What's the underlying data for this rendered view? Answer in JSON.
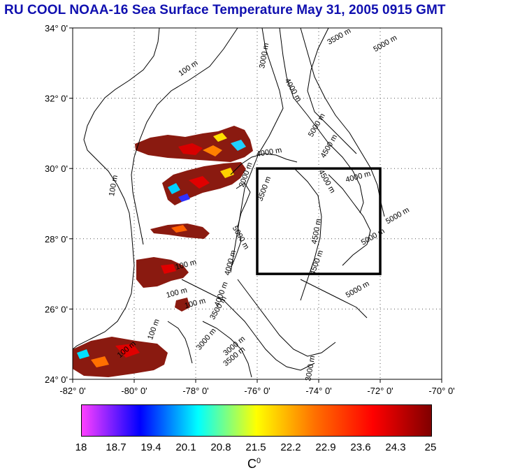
{
  "title": "RU COOL  NOAA-16 Sea Surface Temperature May 31, 2005 0915 GMT",
  "map": {
    "lon_range": [
      -82,
      -70
    ],
    "lat_range": [
      24,
      34
    ],
    "lon_ticks": [
      "-82° 0'",
      "-80° 0'",
      "-78° 0'",
      "-76° 0'",
      "-74° 0'",
      "-72° 0'",
      "-70° 0'"
    ],
    "lat_ticks": [
      "34° 0'",
      "32° 0'",
      "30° 0'",
      "28° 0'",
      "26° 0'",
      "24° 0'"
    ],
    "grid": "dotted",
    "study_box": {
      "lon": [
        -76,
        -72
      ],
      "lat": [
        27,
        30
      ]
    },
    "contour_labels": [
      {
        "text": "100 m",
        "lon": -78.2,
        "lat": 32.8,
        "angle": -35
      },
      {
        "text": "100 m",
        "lon": -80.6,
        "lat": 29.5,
        "angle": -80
      },
      {
        "text": "3000 m",
        "lon": -75.7,
        "lat": 33.2,
        "angle": -80
      },
      {
        "text": "3500 m",
        "lon": -73.3,
        "lat": 33.7,
        "angle": -30
      },
      {
        "text": "5000 m",
        "lon": -71.8,
        "lat": 33.5,
        "angle": -30
      },
      {
        "text": "4000 m",
        "lon": -74.9,
        "lat": 32.2,
        "angle": 60
      },
      {
        "text": "5000 m",
        "lon": -74.0,
        "lat": 31.2,
        "angle": -60
      },
      {
        "text": "4500 m",
        "lon": -73.6,
        "lat": 30.6,
        "angle": -60
      },
      {
        "text": "4000 m",
        "lon": -75.6,
        "lat": 30.4,
        "angle": -10
      },
      {
        "text": "4000 m",
        "lon": -72.7,
        "lat": 29.7,
        "angle": -15
      },
      {
        "text": "4500 m",
        "lon": -73.8,
        "lat": 29.6,
        "angle": 60
      },
      {
        "text": "2000 m",
        "lon": -76.3,
        "lat": 29.8,
        "angle": -70
      },
      {
        "text": "3500 m",
        "lon": -75.7,
        "lat": 29.4,
        "angle": -70
      },
      {
        "text": "5000 m",
        "lon": -71.4,
        "lat": 28.6,
        "angle": -30
      },
      {
        "text": "4500 m",
        "lon": -74.0,
        "lat": 28.2,
        "angle": -80
      },
      {
        "text": "5000 m",
        "lon": -72.2,
        "lat": 28.0,
        "angle": -30
      },
      {
        "text": "5000 m",
        "lon": -76.6,
        "lat": 28.0,
        "angle": 60
      },
      {
        "text": "4500 m",
        "lon": -74.0,
        "lat": 27.3,
        "angle": -70
      },
      {
        "text": "4000 m",
        "lon": -76.8,
        "lat": 27.3,
        "angle": -75
      },
      {
        "text": "100 m",
        "lon": -78.3,
        "lat": 27.2,
        "angle": -15
      },
      {
        "text": "100 m",
        "lon": -78.6,
        "lat": 26.4,
        "angle": -15
      },
      {
        "text": "100 m",
        "lon": -78.0,
        "lat": 26.1,
        "angle": -15
      },
      {
        "text": "5000 m",
        "lon": -72.7,
        "lat": 26.5,
        "angle": -30
      },
      {
        "text": "4000 m",
        "lon": -77.1,
        "lat": 26.4,
        "angle": -70
      },
      {
        "text": "3500 m",
        "lon": -77.2,
        "lat": 26.0,
        "angle": -60
      },
      {
        "text": "100 m",
        "lon": -79.3,
        "lat": 25.4,
        "angle": -70
      },
      {
        "text": "3000 m",
        "lon": -77.6,
        "lat": 25.1,
        "angle": -50
      },
      {
        "text": "100 m",
        "lon": -80.2,
        "lat": 24.8,
        "angle": -40
      },
      {
        "text": "3000 m",
        "lon": -76.7,
        "lat": 24.9,
        "angle": -40
      },
      {
        "text": "3500 m",
        "lon": -76.7,
        "lat": 24.6,
        "angle": -40
      },
      {
        "text": "3000 m",
        "lon": -74.2,
        "lat": 24.3,
        "angle": -80
      }
    ]
  },
  "colorbar": {
    "labels": [
      "18",
      "18.7",
      "19.4",
      "20.1",
      "20.8",
      "21.5",
      "22.2",
      "22.9",
      "23.6",
      "24.3",
      "25"
    ],
    "min": 18,
    "max": 25,
    "unit_base": "C",
    "unit_sup": "0",
    "colors": [
      "#ff40ff",
      "#0000ff",
      "#00ffff",
      "#ffff00",
      "#ff7000",
      "#ff0000",
      "#800000"
    ]
  }
}
